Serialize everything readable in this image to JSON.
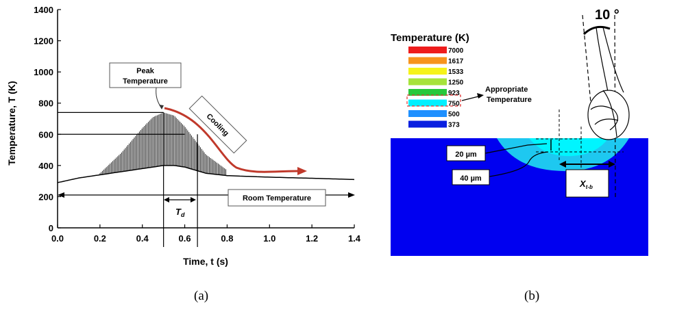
{
  "panel_a": {
    "caption": "(a)",
    "callouts": {
      "peak_line1": "Peak",
      "peak_line2": "Temperature",
      "cooling": "Cooling",
      "room": "Room Temperature",
      "td_main": "T",
      "td_sub": "d"
    }
  },
  "panel_b": {
    "caption": "(b)",
    "legend_title": "Temperature (K)",
    "legend_items": [
      {
        "label": "7000",
        "color": "#ee1c1c"
      },
      {
        "label": "1617",
        "color": "#f7941d"
      },
      {
        "label": "1533",
        "color": "#f5f31a"
      },
      {
        "label": "1250",
        "color": "#a6e33b"
      },
      {
        "label": "923",
        "color": "#27c83a"
      },
      {
        "label": "750",
        "color": "#00f0ff"
      },
      {
        "label": "500",
        "color": "#1e90ff"
      },
      {
        "label": "373",
        "color": "#0a1fe0"
      }
    ],
    "appropriate_line1": "Appropriate",
    "appropriate_line2": "Temperature",
    "angle_label": "10 °",
    "dim_20": "20 µm",
    "dim_40": "40 µm",
    "xtb_main": "X",
    "xtb_sub": "t-b",
    "colors": {
      "workpiece": "#0000f0",
      "hot_zone": "#1ec8f0",
      "core_zone": "#00f5ff"
    }
  },
  "chart_data": {
    "type": "line",
    "xlabel": "Time, t (s)",
    "ylabel": "Temperature, T (K)",
    "xlim": [
      0.0,
      1.4
    ],
    "ylim": [
      0,
      1400
    ],
    "xticks": [
      "0.0",
      "0.2",
      "0.4",
      "0.6",
      "0.8",
      "1.0",
      "1.2",
      "1.4"
    ],
    "yticks": [
      "0",
      "200",
      "400",
      "600",
      "800",
      "1000",
      "1200",
      "1400"
    ],
    "series": [
      {
        "x": [
          0.0,
          0.1,
          0.2,
          0.3,
          0.4,
          0.45,
          0.5,
          0.55,
          0.6,
          0.65,
          0.7,
          0.8,
          0.9,
          1.0,
          1.2,
          1.4
        ],
        "upper": [
          290,
          320,
          350,
          480,
          640,
          710,
          740,
          720,
          650,
          560,
          470,
          370,
          340,
          330,
          320,
          310
        ],
        "lower": [
          290,
          320,
          340,
          360,
          380,
          390,
          400,
          400,
          390,
          370,
          350,
          335,
          330,
          325,
          318,
          310
        ]
      }
    ],
    "reference_lines": {
      "peak_temperature": 740,
      "lower_level": 600,
      "td_start": 0.5,
      "td_end": 0.66
    }
  }
}
